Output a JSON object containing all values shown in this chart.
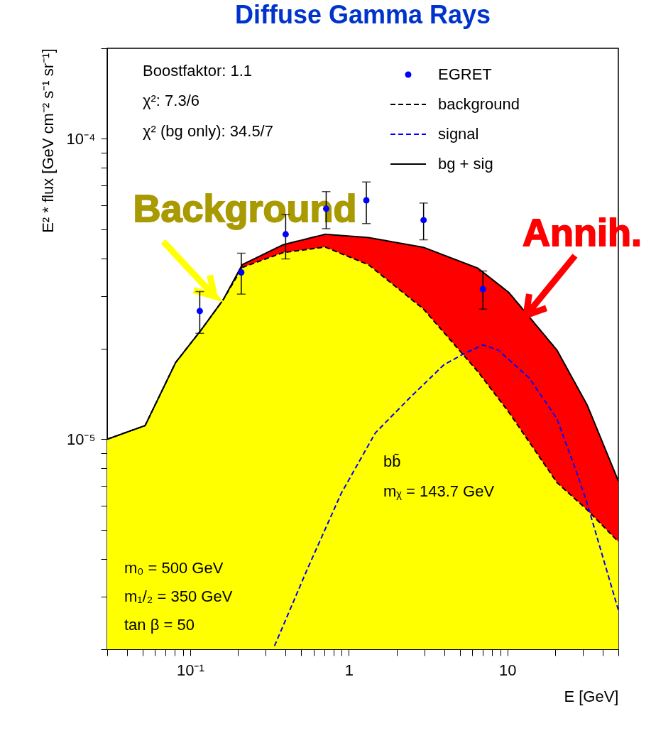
{
  "chart_data": {
    "type": "line",
    "title": "Diffuse Gamma Rays",
    "xlabel": "E [GeV]",
    "ylabel": "E² * flux [GeV cm⁻² s⁻¹ sr⁻¹]",
    "log": "xy",
    "grid": false,
    "legend": "top right",
    "xlim": [
      0.03,
      50
    ],
    "ylim": [
      2e-06,
      0.0002
    ],
    "xticks": [
      {
        "value": 0.03,
        "label": null
      },
      {
        "value": 0.04,
        "label": null
      },
      {
        "value": 0.05,
        "label": null
      },
      {
        "value": 0.06,
        "label": null
      },
      {
        "value": 0.07,
        "label": null
      },
      {
        "value": 0.08,
        "label": null
      },
      {
        "value": 0.09,
        "label": null
      },
      {
        "value": 0.1,
        "label": "10⁻¹"
      },
      {
        "value": 0.2,
        "label": null
      },
      {
        "value": 0.3,
        "label": null
      },
      {
        "value": 0.4,
        "label": null
      },
      {
        "value": 0.5,
        "label": null
      },
      {
        "value": 0.6,
        "label": null
      },
      {
        "value": 0.7,
        "label": null
      },
      {
        "value": 0.8,
        "label": null
      },
      {
        "value": 0.9,
        "label": null
      },
      1,
      {
        "value": 2,
        "label": null
      },
      {
        "value": 3,
        "label": null
      },
      {
        "value": 4,
        "label": null
      },
      {
        "value": 5,
        "label": null
      },
      {
        "value": 6,
        "label": null
      },
      {
        "value": 7,
        "label": null
      },
      {
        "value": 8,
        "label": null
      },
      {
        "value": 9,
        "label": null
      },
      10,
      {
        "value": 20,
        "label": null
      },
      {
        "value": 30,
        "label": null
      },
      {
        "value": 40,
        "label": null
      },
      {
        "value": 50,
        "label": null
      }
    ],
    "yticks": [
      {
        "value": 2e-06,
        "label": null
      },
      {
        "value": 3e-06,
        "label": null
      },
      {
        "value": 4e-06,
        "label": null
      },
      {
        "value": 5e-06,
        "label": null
      },
      {
        "value": 6e-06,
        "label": null
      },
      {
        "value": 7e-06,
        "label": null
      },
      {
        "value": 8e-06,
        "label": null
      },
      {
        "value": 9e-06,
        "label": null
      },
      {
        "value": 1e-05,
        "label": "10⁻⁵"
      },
      {
        "value": 2e-05,
        "label": null
      },
      {
        "value": 3e-05,
        "label": null
      },
      {
        "value": 4e-05,
        "label": null
      },
      {
        "value": 5e-05,
        "label": null
      },
      {
        "value": 6e-05,
        "label": null
      },
      {
        "value": 7e-05,
        "label": null
      },
      {
        "value": 8e-05,
        "label": null
      },
      {
        "value": 9e-05,
        "label": null
      },
      {
        "value": 0.0001,
        "label": "10⁻⁴"
      },
      {
        "value": 0.0002,
        "label": null
      }
    ],
    "x": [
      0.03,
      0.052,
      0.081,
      0.118,
      0.162,
      0.213,
      0.386,
      0.71,
      1.33,
      2.96,
      6.5,
      10.2,
      20.5,
      31.8,
      50
    ],
    "series": [
      {
        "name": "EGRET",
        "type": "scatter",
        "color": "#0000ff",
        "marker": "circle",
        "x": [
          0.115,
          0.21,
          0.4,
          0.72,
          1.29,
          2.96,
          7.0
        ],
        "values": [
          2.67e-05,
          3.59e-05,
          4.81e-05,
          5.85e-05,
          6.24e-05,
          5.36e-05,
          3.16e-05
        ],
        "errors": [
          [
            2.25e-05,
            3.1e-05
          ],
          [
            3.04e-05,
            4.16e-05
          ],
          [
            3.98e-05,
            5.6e-05
          ],
          [
            5.02e-05,
            6.67e-05
          ],
          [
            5.22e-05,
            7.18e-05
          ],
          [
            4.61e-05,
            6.11e-05
          ],
          [
            2.71e-05,
            3.63e-05
          ]
        ]
      },
      {
        "name": "background",
        "type": "area",
        "color": "#ffff00",
        "line_style": "dashed",
        "values": [
          1e-05,
          1.11e-05,
          1.8e-05,
          2.32e-05,
          2.92e-05,
          3.73e-05,
          4.18e-05,
          4.36e-05,
          3.81e-05,
          2.71e-05,
          1.68e-05,
          1.23e-05,
          7.18e-06,
          5.82e-06,
          4.56e-06
        ]
      },
      {
        "name": "signal",
        "type": "line",
        "color": "#0000ff",
        "line_style": "dashed",
        "x": [
          0.34,
          0.547,
          0.894,
          1.47,
          2.41,
          3.98,
          5.36,
          6.99,
          8.75,
          13.7,
          20.5,
          27.5,
          31.8,
          50
        ],
        "values": [
          2.05e-06,
          3.69e-06,
          6.59e-06,
          1.05e-05,
          1.37e-05,
          1.77e-05,
          1.93e-05,
          2.06e-05,
          1.98e-05,
          1.6e-05,
          1.17e-05,
          7.67e-06,
          6.11e-06,
          2.7e-06
        ]
      },
      {
        "name": "bg + sig",
        "type": "area",
        "color": "#ff0000",
        "line_style": "solid",
        "values": [
          1e-05,
          1.11e-05,
          1.8e-05,
          2.32e-05,
          2.92e-05,
          3.81e-05,
          4.44e-05,
          4.81e-05,
          4.69e-05,
          4.35e-05,
          3.71e-05,
          3.08e-05,
          1.98e-05,
          1.3e-05,
          7.26e-06
        ]
      }
    ],
    "annotations": [
      "Boostfaktor: 1.1",
      "χ²: 7.3/6",
      "χ² (bg only): 34.5/7",
      "bb̄",
      "mᵪ = 143.7 GeV",
      "m₀ = 500 GeV",
      "m₁/₂ = 350 GeV",
      "tan β = 50",
      "Background",
      "Annih."
    ]
  }
}
